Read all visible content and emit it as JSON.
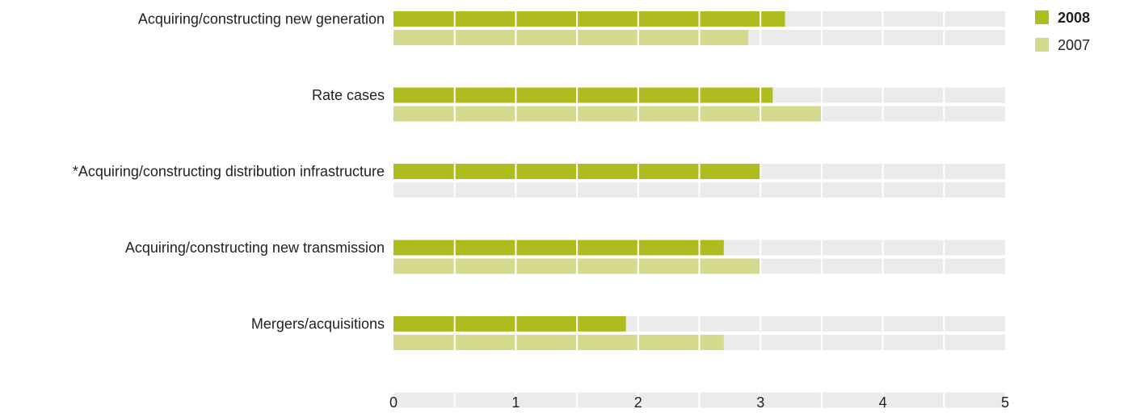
{
  "chart_data": {
    "type": "bar",
    "orientation": "horizontal",
    "categories": [
      "Acquiring/constructing new generation",
      "Rate cases",
      "*Acquiring/constructing distribution infrastructure",
      "Acquiring/constructing new transmission",
      "Mergers/acquisitions"
    ],
    "series": [
      {
        "name": "2008",
        "color": "#b0bb1d",
        "values": [
          3.2,
          3.1,
          3.0,
          2.7,
          1.9
        ]
      },
      {
        "name": "2007",
        "color": "#d4d98e",
        "values": [
          2.9,
          3.5,
          null,
          3.0,
          2.7
        ]
      }
    ],
    "xlim": [
      0,
      5
    ],
    "x_ticks": [
      "0",
      "1",
      "2",
      "3",
      "4",
      "5"
    ],
    "track_color": "#ebebeb",
    "legend_position": "top-right",
    "grid": true
  }
}
